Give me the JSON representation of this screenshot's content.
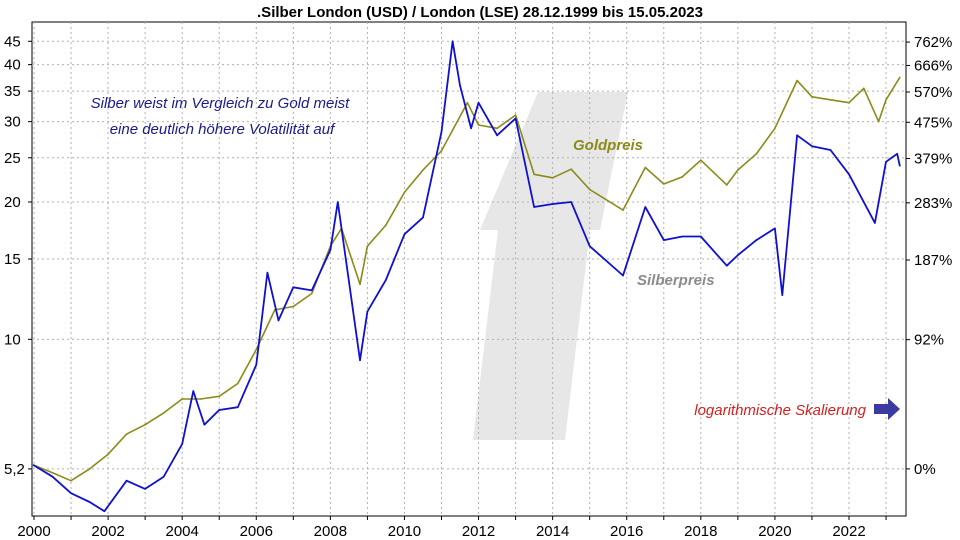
{
  "chart_data": {
    "type": "line",
    "title": ".Silber London (USD) / London (LSE) 28.12.1999 bis 15.05.2023",
    "scale": "log",
    "grid": true,
    "x_ticks": [
      "2000",
      "2002",
      "2004",
      "2006",
      "2008",
      "2010",
      "2012",
      "2014",
      "2016",
      "2018",
      "2020",
      "2022"
    ],
    "y_left_ticks": [
      {
        "label": "45",
        "value": 45
      },
      {
        "label": "40",
        "value": 40
      },
      {
        "label": "35",
        "value": 35
      },
      {
        "label": "30",
        "value": 30
      },
      {
        "label": "25",
        "value": 25
      },
      {
        "label": "20",
        "value": 20
      },
      {
        "label": "15",
        "value": 15
      },
      {
        "label": "10",
        "value": 10
      },
      {
        "label": "5,2",
        "value": 5.2
      }
    ],
    "y_right_ticks": [
      {
        "label": "762%",
        "value": 762
      },
      {
        "label": "666%",
        "value": 666
      },
      {
        "label": "570%",
        "value": 570
      },
      {
        "label": "475%",
        "value": 475
      },
      {
        "label": "379%",
        "value": 379
      },
      {
        "label": "283%",
        "value": 283
      },
      {
        "label": "187%",
        "value": 187
      },
      {
        "label": "92%",
        "value": 92
      },
      {
        "label": "0%",
        "value": 0
      }
    ],
    "ylim": [
      4.0,
      50.0
    ],
    "xlim": [
      1999.75,
      2023.5
    ],
    "series": [
      {
        "name": "Goldpreis",
        "color": "#8b8b1a",
        "x": [
          1999.99,
          2000.5,
          2001.0,
          2001.5,
          2002.0,
          2002.5,
          2003.0,
          2003.5,
          2004.0,
          2004.5,
          2005.0,
          2005.5,
          2006.0,
          2006.5,
          2007.0,
          2007.5,
          2008.0,
          2008.3,
          2008.8,
          2009.0,
          2009.5,
          2010.0,
          2010.5,
          2011.0,
          2011.7,
          2012.0,
          2012.5,
          2013.0,
          2013.5,
          2014.0,
          2014.5,
          2015.0,
          2015.9,
          2016.5,
          2017.0,
          2017.5,
          2018.0,
          2018.7,
          2019.0,
          2019.5,
          2020.0,
          2020.6,
          2021.0,
          2021.5,
          2022.0,
          2022.4,
          2022.8,
          2023.0,
          2023.37
        ],
        "values": [
          5.3,
          5.1,
          4.9,
          5.2,
          5.6,
          6.2,
          6.5,
          6.9,
          7.4,
          7.4,
          7.5,
          8.0,
          9.5,
          11.6,
          11.8,
          12.6,
          16.0,
          17.5,
          13.2,
          16.0,
          17.8,
          21.0,
          23.5,
          25.9,
          33.0,
          29.5,
          29.0,
          31.0,
          23.0,
          22.6,
          23.6,
          21.3,
          19.2,
          23.8,
          21.9,
          22.7,
          24.7,
          21.8,
          23.5,
          25.5,
          29.0,
          36.9,
          34.0,
          33.5,
          33.0,
          35.5,
          30.0,
          33.5,
          37.5
        ]
      },
      {
        "name": "Silberpreis",
        "color": "#1010d0",
        "x": [
          1999.99,
          2000.5,
          2001.0,
          2001.5,
          2001.9,
          2002.5,
          2003.0,
          2003.5,
          2004.0,
          2004.3,
          2004.6,
          2005.0,
          2005.5,
          2006.0,
          2006.3,
          2006.6,
          2007.0,
          2007.5,
          2008.0,
          2008.2,
          2008.8,
          2009.0,
          2009.5,
          2010.0,
          2010.5,
          2011.0,
          2011.3,
          2011.5,
          2011.8,
          2012.0,
          2012.5,
          2013.0,
          2013.5,
          2014.0,
          2014.5,
          2015.0,
          2015.9,
          2016.5,
          2017.0,
          2017.5,
          2018.0,
          2018.7,
          2019.0,
          2019.5,
          2020.0,
          2020.2,
          2020.6,
          2021.0,
          2021.5,
          2022.0,
          2022.7,
          2023.0,
          2023.3,
          2023.37
        ],
        "values": [
          5.3,
          5.0,
          4.6,
          4.4,
          4.2,
          4.9,
          4.7,
          5.0,
          5.9,
          7.7,
          6.5,
          7.0,
          7.1,
          8.8,
          14.0,
          11.0,
          13.0,
          12.8,
          15.7,
          20.0,
          9.0,
          11.5,
          13.5,
          17.0,
          18.5,
          28.5,
          45.0,
          36.0,
          29.0,
          33.0,
          28.0,
          30.5,
          19.5,
          19.8,
          20.0,
          16.0,
          13.8,
          19.5,
          16.5,
          16.8,
          16.8,
          14.5,
          15.3,
          16.5,
          17.5,
          12.5,
          28.0,
          26.5,
          26.0,
          23.0,
          18.0,
          24.5,
          25.5,
          24.0
        ]
      }
    ],
    "annotations": {
      "headline_line1": "Silber weist im Vergleich zu Gold meist",
      "headline_line2": "eine deutlich höhere Volatilität auf",
      "gold_label": "Goldpreis",
      "silver_label": "Silberpreis",
      "scale_label": "logarithmische Skalierung",
      "headline_color": "#1a1a8c",
      "gold_label_color": "#8b8b1a",
      "silver_label_color": "#8c8c8c",
      "scale_label_color": "#d42020",
      "arrow_color": "#3a3aa0"
    }
  }
}
